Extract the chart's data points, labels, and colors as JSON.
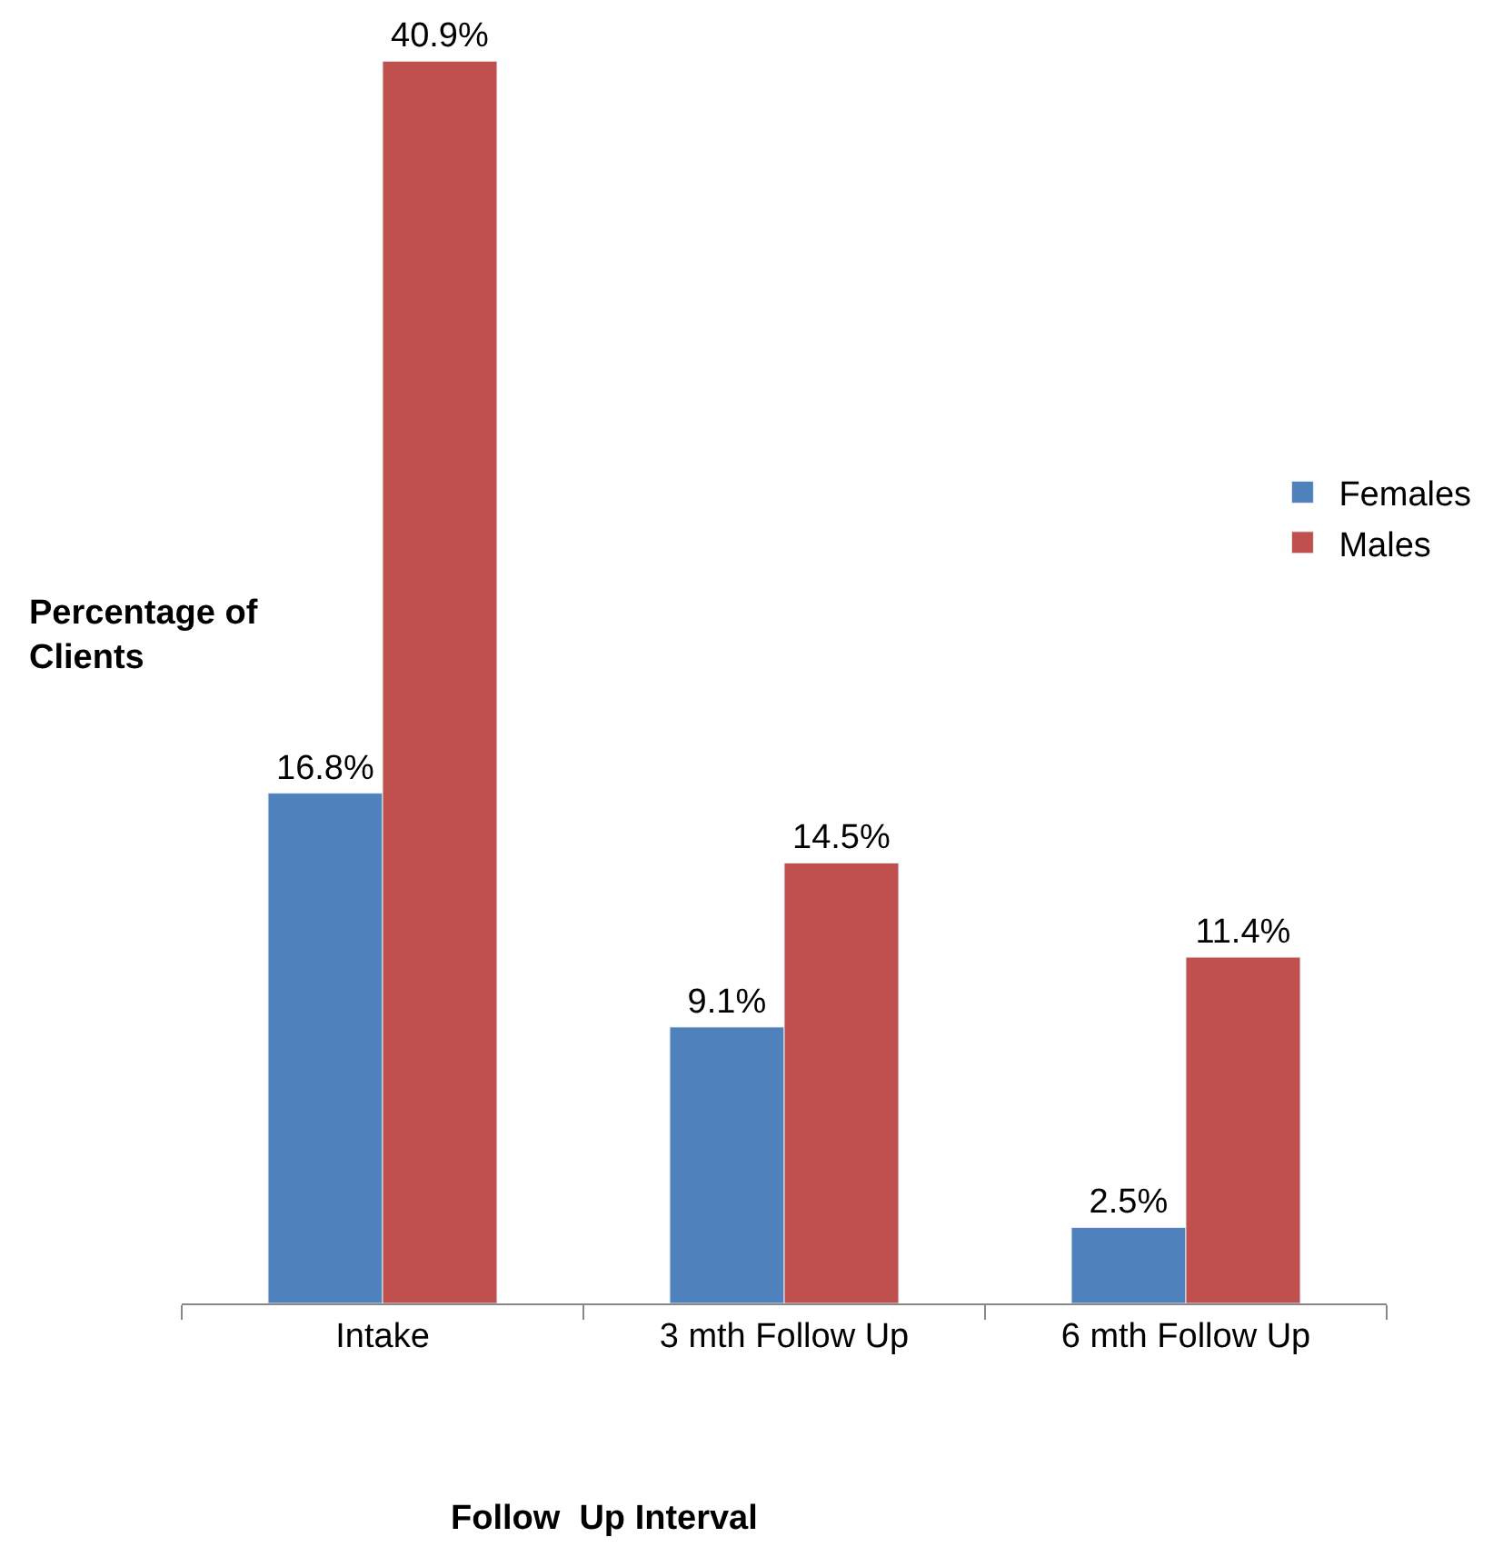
{
  "chart_data": {
    "type": "bar",
    "xlabel": "Follow  Up Interval",
    "ylabel": "Percentage of\nClients",
    "categories": [
      "Intake",
      "3 mth Follow Up",
      "6 mth Follow Up"
    ],
    "series": [
      {
        "name": "Females",
        "color": "#4f81bd",
        "values": [
          16.8,
          9.1,
          2.5
        ],
        "value_labels": [
          "16.8%",
          "9.1%",
          "2.5%"
        ]
      },
      {
        "name": "Males",
        "color": "#c0504d",
        "values": [
          40.9,
          14.5,
          11.4
        ],
        "value_labels": [
          "40.9%",
          "14.5%",
          "11.4%"
        ]
      }
    ],
    "legend": "right"
  }
}
